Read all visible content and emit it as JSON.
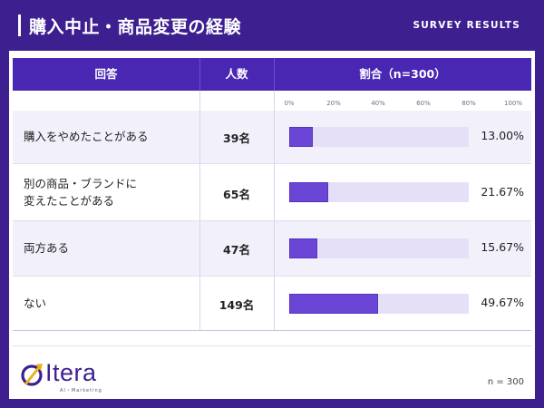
{
  "header": {
    "title": "購入中止・商品変更の経験",
    "tag": "SURVEY RESULTS"
  },
  "table": {
    "columns": [
      "回答",
      "人数",
      "割合（n=300）"
    ],
    "scale_ticks": [
      "0%",
      "20%",
      "40%",
      "60%",
      "80%",
      "100%"
    ],
    "rows": [
      {
        "answer_lines": [
          "購入をやめたことがある"
        ],
        "count": "39名",
        "pct_label": "13.00%",
        "pct": 13.0
      },
      {
        "answer_lines": [
          "別の商品・ブランドに",
          "変えたことがある"
        ],
        "count": "65名",
        "pct_label": "21.67%",
        "pct": 21.67
      },
      {
        "answer_lines": [
          "両方ある"
        ],
        "count": "47名",
        "pct_label": "15.67%",
        "pct": 15.67
      },
      {
        "answer_lines": [
          "ない"
        ],
        "count": "149名",
        "pct_label": "49.67%",
        "pct": 49.67
      }
    ]
  },
  "footer": {
    "logo_text": "Itera",
    "logo_sub": "AI・Marketing",
    "n_note": "n = 300"
  },
  "colors": {
    "brand": "#3d1f8f",
    "header_bg": "#4a27b3",
    "bar_fill": "#6a45d6",
    "bar_track": "#e5e0f8",
    "accent_gold": "#e8b21a"
  }
}
